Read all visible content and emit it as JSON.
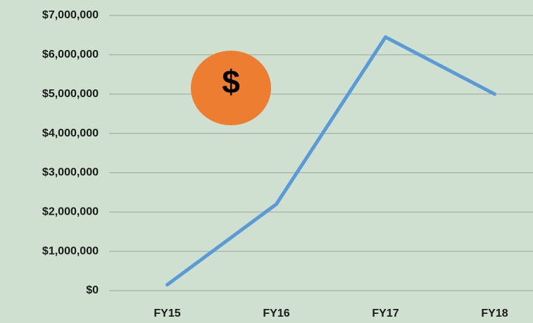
{
  "chart_data": {
    "type": "line",
    "categories": [
      "FY15",
      "FY16",
      "FY17",
      "FY18"
    ],
    "series": [
      {
        "color": "#5b9bd5",
        "values": [
          150000,
          2200000,
          6450000,
          5000000
        ]
      }
    ],
    "ylim": [
      0,
      7000000
    ],
    "yticks": [
      {
        "value": 0,
        "label": "$0"
      },
      {
        "value": 1000000,
        "label": "$1,000,000"
      },
      {
        "value": 2000000,
        "label": "$2,000,000"
      },
      {
        "value": 3000000,
        "label": "$3,000,000"
      },
      {
        "value": 4000000,
        "label": "$4,000,000"
      },
      {
        "value": 5000000,
        "label": "$5,000,000"
      },
      {
        "value": 6000000,
        "label": "$6,000,000"
      },
      {
        "value": 7000000,
        "label": "$7,000,000"
      }
    ],
    "grid": true,
    "annotations": [
      "$"
    ]
  }
}
